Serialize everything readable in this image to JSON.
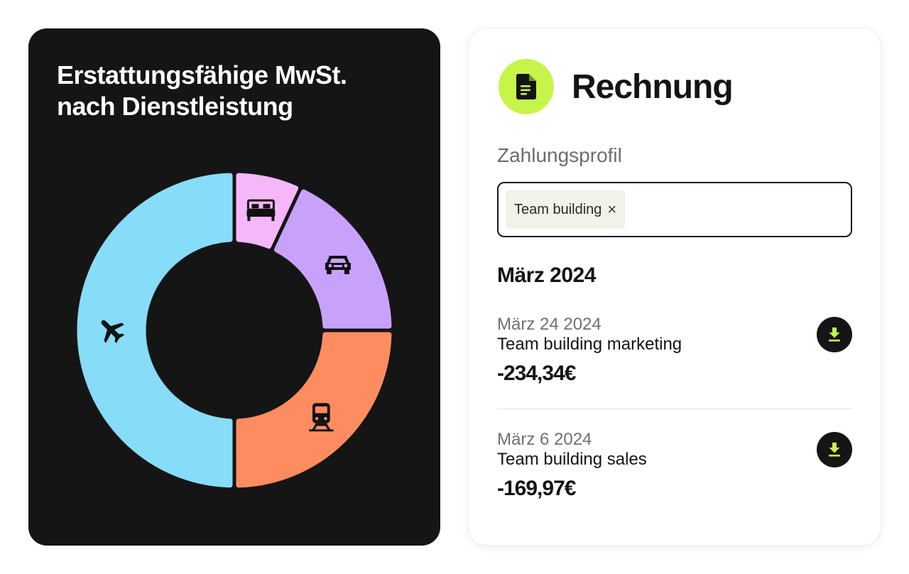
{
  "chart_card": {
    "title_line1": "Erstattungsfähige MwSt.",
    "title_line2": "nach Dienstleistung"
  },
  "chart_data": {
    "type": "pie",
    "style": "donut",
    "title": "Erstattungsfähige MwSt. nach Dienstleistung",
    "slices": [
      {
        "category": "hotel",
        "icon": "bed-icon",
        "fraction": 0.0694,
        "color": "#f6b6fa"
      },
      {
        "category": "car",
        "icon": "car-icon",
        "fraction": 0.1806,
        "color": "#c8a2fa"
      },
      {
        "category": "train",
        "icon": "train-icon",
        "fraction": 0.25,
        "color": "#fd8d61"
      },
      {
        "category": "flight",
        "icon": "airplane-icon",
        "fraction": 0.5,
        "color": "#87dcf8"
      }
    ]
  },
  "invoice": {
    "title": "Rechnung",
    "badge_icon": "document-icon",
    "accent": "#c6f54a",
    "payment_profile_label": "Zahlungsprofil",
    "selected_tag": "Team building",
    "tag_remove_glyph": "×",
    "month_heading": "März 2024",
    "entries": [
      {
        "date": "März 24 2024",
        "name": "Team building marketing",
        "amount": "-234,34€",
        "action_icon": "download-icon"
      },
      {
        "date": "März 6 2024",
        "name": "Team building sales",
        "amount": "-169,97€",
        "action_icon": "download-icon"
      }
    ]
  }
}
